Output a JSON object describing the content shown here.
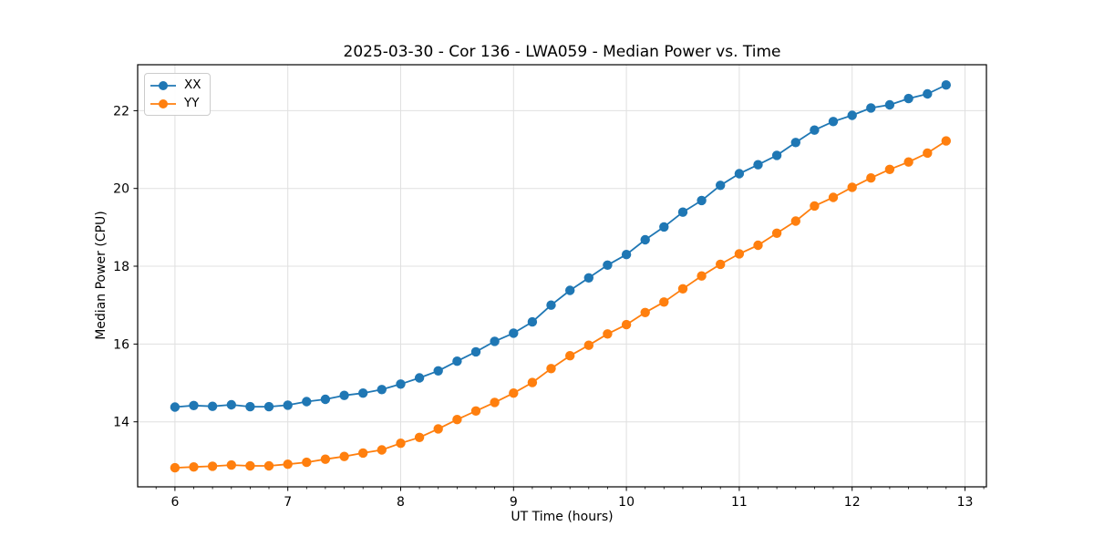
{
  "figure": {
    "background": "#ffffff"
  },
  "chart_data": {
    "type": "line",
    "title": "2025-03-30 - Cor 136 - LWA059 - Median Power vs. Time",
    "xlabel": "UT Time (hours)",
    "ylabel": "Median Power (CPU)",
    "xlim": [
      5.67,
      13.19
    ],
    "ylim": [
      12.33,
      23.18
    ],
    "x_ticks": [
      6,
      7,
      8,
      9,
      10,
      11,
      12,
      13
    ],
    "y_ticks": [
      14,
      16,
      18,
      20,
      22
    ],
    "x_minor_step": 0.166667,
    "grid": true,
    "grid_color": "#e0e0e0",
    "legend_position": "upper-left",
    "marker": "circle",
    "x": [
      6.0,
      6.167,
      6.333,
      6.5,
      6.667,
      6.833,
      7.0,
      7.167,
      7.333,
      7.5,
      7.667,
      7.833,
      8.0,
      8.167,
      8.333,
      8.5,
      8.667,
      8.833,
      9.0,
      9.167,
      9.333,
      9.5,
      9.667,
      9.833,
      10.0,
      10.167,
      10.333,
      10.5,
      10.667,
      10.833,
      11.0,
      11.167,
      11.333,
      11.5,
      11.667,
      11.833,
      12.0,
      12.167,
      12.333,
      12.5,
      12.667,
      12.833
    ],
    "series": [
      {
        "name": "XX",
        "color": "#1f77b4",
        "values": [
          14.38,
          14.42,
          14.4,
          14.44,
          14.39,
          14.39,
          14.43,
          14.52,
          14.58,
          14.68,
          14.74,
          14.83,
          14.97,
          15.13,
          15.31,
          15.56,
          15.8,
          16.07,
          16.28,
          16.57,
          17.0,
          17.38,
          17.7,
          18.03,
          18.3,
          18.68,
          19.01,
          19.39,
          19.69,
          20.08,
          20.38,
          20.61,
          20.85,
          21.18,
          21.5,
          21.72,
          21.88,
          22.07,
          22.15,
          22.31,
          22.43,
          22.66
        ]
      },
      {
        "name": "YY",
        "color": "#ff7f0e",
        "values": [
          12.82,
          12.84,
          12.86,
          12.89,
          12.87,
          12.87,
          12.91,
          12.96,
          13.04,
          13.11,
          13.2,
          13.28,
          13.45,
          13.6,
          13.82,
          14.06,
          14.28,
          14.5,
          14.74,
          15.01,
          15.37,
          15.7,
          15.97,
          16.26,
          16.5,
          16.81,
          17.08,
          17.42,
          17.75,
          18.05,
          18.32,
          18.54,
          18.85,
          19.16,
          19.55,
          19.77,
          20.03,
          20.27,
          20.49,
          20.68,
          20.91,
          21.22
        ]
      }
    ]
  }
}
